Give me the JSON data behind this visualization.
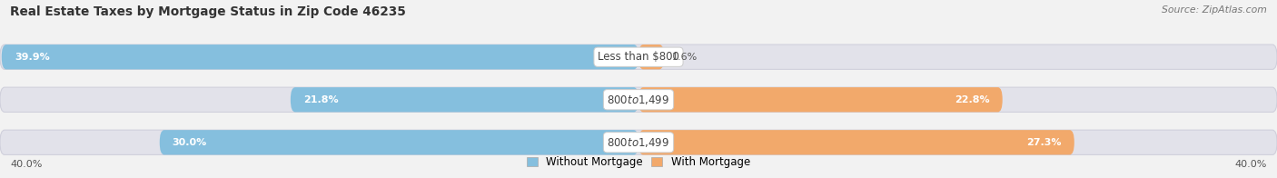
{
  "title": "Real Estate Taxes by Mortgage Status in Zip Code 46235",
  "source": "Source: ZipAtlas.com",
  "rows": [
    {
      "label": "Less than $800",
      "without_mortgage": 39.9,
      "with_mortgage": 1.6
    },
    {
      "label": "$800 to $1,499",
      "without_mortgage": 21.8,
      "with_mortgage": 22.8
    },
    {
      "label": "$800 to $1,499",
      "without_mortgage": 30.0,
      "with_mortgage": 27.3
    }
  ],
  "x_max": 40.0,
  "axis_label_left": "40.0%",
  "axis_label_right": "40.0%",
  "color_without": "#85BFDE",
  "color_with": "#F2A96B",
  "color_bar_bg": "#E2E2EA",
  "color_bar_border": "#D0D0DC",
  "legend_without": "Without Mortgage",
  "legend_with": "With Mortgage",
  "bar_height": 0.58,
  "label_threshold": 8.0
}
